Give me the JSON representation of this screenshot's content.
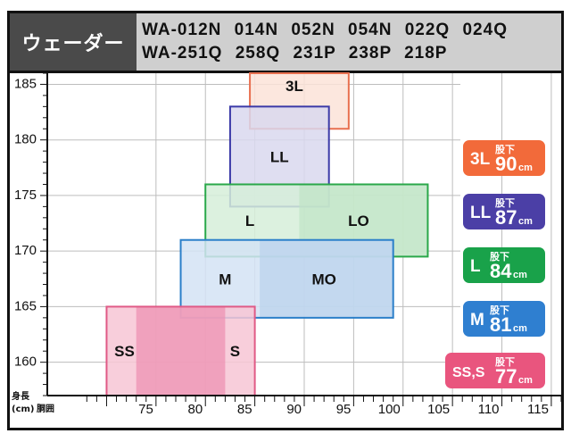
{
  "header": {
    "title": "ウェーダー",
    "models_line1": "WA-012N  014N  052N  054N  022Q  024Q",
    "models_line2": "WA-251Q  258Q  231P  238P  218P"
  },
  "chart_data": {
    "type": "size-chart",
    "x_axis": {
      "title": "胴囲",
      "ticks": [
        75,
        80,
        85,
        90,
        95,
        100,
        105,
        110,
        115
      ],
      "range": [
        64,
        116
      ]
    },
    "y_axis": {
      "title": "身長",
      "unit": "(cm)",
      "ticks": [
        160,
        165,
        170,
        175,
        180,
        185
      ],
      "range": [
        157,
        186
      ]
    },
    "sizes": [
      {
        "label": "3L",
        "x0": 84.5,
        "x1": 94.5,
        "y0": 181,
        "y1": 186,
        "fill": "#fbe3d8",
        "stroke": "#e87050"
      },
      {
        "label": "LL",
        "x0": 82.5,
        "x1": 92.5,
        "y0": 174,
        "y1": 183,
        "fill": "#d9d8ee",
        "stroke": "#3b3aa8"
      },
      {
        "label": "L",
        "x0": 80,
        "x1": 102.5,
        "y0": 169.5,
        "y1": 176,
        "fill": "#d6efd9",
        "stroke": "#2aa84a",
        "left_label": "L",
        "right_label": "LO",
        "split_x": 89.5,
        "split_fill": "#bfe4c5"
      },
      {
        "label": "M",
        "x0": 77.5,
        "x1": 99,
        "y0": 164,
        "y1": 171,
        "fill": "#d3e3f4",
        "stroke": "#2b7fc9",
        "left_label": "M",
        "right_label": "MO",
        "split_x": 85.5,
        "split_fill": "#b9d2ec"
      },
      {
        "label": "SS",
        "x0": 70,
        "x1": 85,
        "y0": 157,
        "y1": 165,
        "fill": "#f7c6d5",
        "stroke": "#e05a86",
        "left_label": "SS",
        "right_label": "S",
        "split_x": 73,
        "split_end": 82,
        "split_fill": "#ec8fb0"
      }
    ],
    "legend": [
      {
        "size": "3L",
        "inseam_label": "股下",
        "inseam": "90",
        "unit": "cm",
        "color": "#f26a3a"
      },
      {
        "size": "LL",
        "inseam_label": "股下",
        "inseam": "87",
        "unit": "cm",
        "color": "#4b3fa6"
      },
      {
        "size": "L",
        "inseam_label": "股下",
        "inseam": "84",
        "unit": "cm",
        "color": "#19a24a"
      },
      {
        "size": "M",
        "inseam_label": "股下",
        "inseam": "81",
        "unit": "cm",
        "color": "#2f7fd0"
      },
      {
        "size": "SS,S",
        "inseam_label": "股下",
        "inseam": "77",
        "unit": "cm",
        "color": "#e9557e"
      }
    ]
  }
}
